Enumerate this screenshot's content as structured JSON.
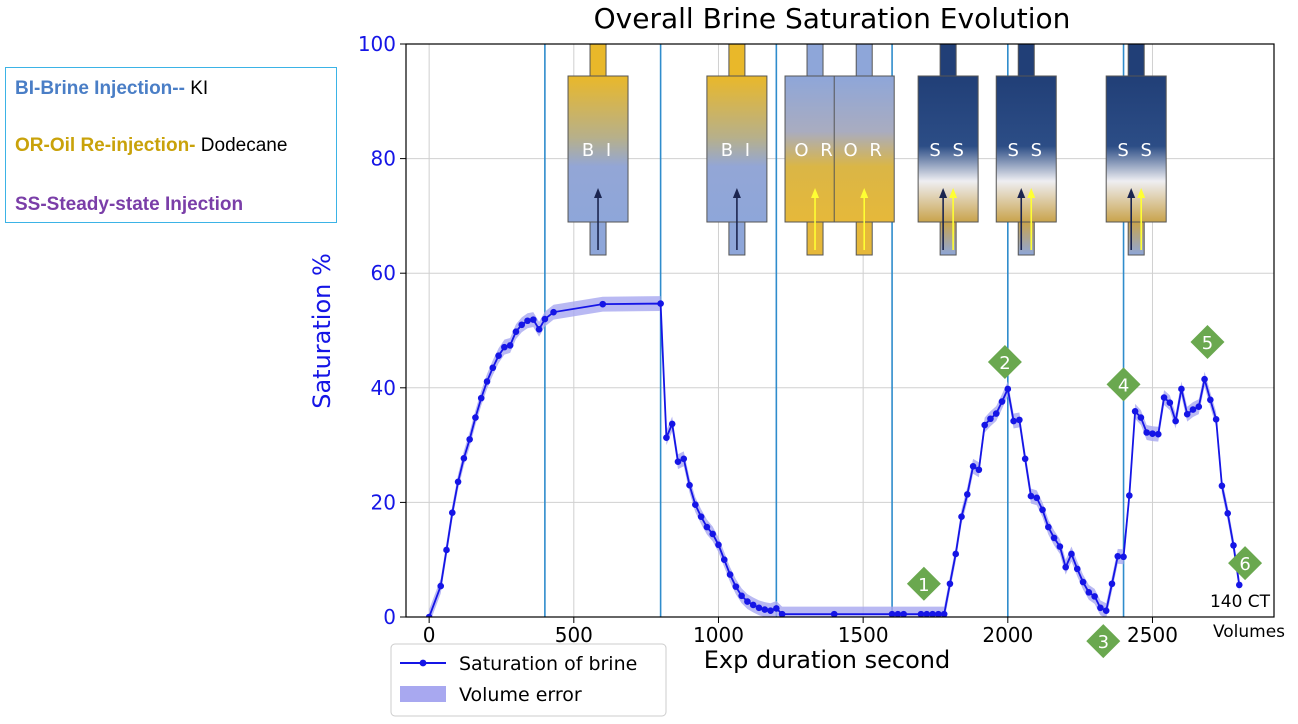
{
  "legend_box": {
    "lines": [
      {
        "key": "BI-Brine Injection--",
        "value": " KI",
        "key_color": "#4a7ec6"
      },
      {
        "key": "OR-Oil Re-injection-",
        "value": " Dodecane",
        "key_color": "#c9a20a"
      },
      {
        "key": "SS-Steady-state Injection",
        "value": "",
        "key_color": "#7a3ea8"
      }
    ]
  },
  "colors": {
    "line": "#1515e6",
    "band": "#a8a8f0",
    "axis_text": "#1515e6",
    "phase_line": "#2f8ccc",
    "marker": "#6aa84f"
  },
  "chart_data": {
    "type": "line",
    "title": "Overall Brine Saturation Evolution",
    "xlabel": "Exp duration second",
    "ylabel": "Saturation %",
    "xlim": [
      -80,
      2920
    ],
    "ylim": [
      0,
      100
    ],
    "xticks": [
      "0",
      "500",
      "1000",
      "1500",
      "2000",
      "2500"
    ],
    "yticks": [
      "0",
      "20",
      "40",
      "60",
      "80",
      "100"
    ],
    "grid": true,
    "phase_boundaries": [
      400,
      800,
      1200,
      1600,
      2000,
      2400
    ],
    "legend": {
      "position": "bottom-left",
      "entries": [
        "Saturation of brine",
        "Volume error"
      ]
    },
    "series": [
      {
        "name": "Saturation of brine",
        "error": 1.3,
        "points": [
          [
            0,
            0
          ],
          [
            40,
            5.4
          ],
          [
            60,
            11.7
          ],
          [
            80,
            18.2
          ],
          [
            100,
            23.6
          ],
          [
            120,
            27.7
          ],
          [
            140,
            31
          ],
          [
            160,
            34.8
          ],
          [
            180,
            38.2
          ],
          [
            200,
            41.1
          ],
          [
            220,
            43.5
          ],
          [
            240,
            45.6
          ],
          [
            260,
            47.1
          ],
          [
            280,
            47.4
          ],
          [
            300,
            49.8
          ],
          [
            320,
            51
          ],
          [
            340,
            51.7
          ],
          [
            360,
            51.9
          ],
          [
            380,
            50.2
          ],
          [
            400,
            52
          ],
          [
            430,
            53.2
          ],
          [
            600,
            54.6
          ],
          [
            800,
            54.7
          ],
          [
            820,
            31.3
          ],
          [
            840,
            33.7
          ],
          [
            860,
            27.1
          ],
          [
            880,
            27.6
          ],
          [
            900,
            23
          ],
          [
            920,
            19.6
          ],
          [
            940,
            17.5
          ],
          [
            960,
            15.7
          ],
          [
            980,
            14.5
          ],
          [
            1000,
            12.6
          ],
          [
            1020,
            10
          ],
          [
            1040,
            7.4
          ],
          [
            1060,
            5.3
          ],
          [
            1080,
            3.7
          ],
          [
            1100,
            2.7
          ],
          [
            1120,
            2.1
          ],
          [
            1140,
            1.6
          ],
          [
            1160,
            1.3
          ],
          [
            1180,
            1.1
          ],
          [
            1200,
            1.5
          ],
          [
            1220,
            0.5
          ],
          [
            1400,
            0.5
          ],
          [
            1600,
            0.5
          ],
          [
            1620,
            0.5
          ],
          [
            1640,
            0.5
          ],
          [
            1700,
            0.5
          ],
          [
            1720,
            0.5
          ],
          [
            1740,
            0.5
          ],
          [
            1760,
            0.5
          ],
          [
            1780,
            0.5
          ],
          [
            1800,
            5.8
          ],
          [
            1820,
            11
          ],
          [
            1840,
            17.5
          ],
          [
            1860,
            21.4
          ],
          [
            1880,
            26.3
          ],
          [
            1900,
            25.7
          ],
          [
            1920,
            33.5
          ],
          [
            1940,
            34.6
          ],
          [
            1960,
            35.5
          ],
          [
            1980,
            37.6
          ],
          [
            2000,
            39.8
          ],
          [
            2020,
            34.2
          ],
          [
            2040,
            34.4
          ],
          [
            2060,
            27.6
          ],
          [
            2080,
            21.1
          ],
          [
            2100,
            20.8
          ],
          [
            2120,
            18.7
          ],
          [
            2140,
            15.7
          ],
          [
            2160,
            13.8
          ],
          [
            2180,
            12.3
          ],
          [
            2200,
            8.7
          ],
          [
            2220,
            11
          ],
          [
            2240,
            8.4
          ],
          [
            2260,
            6.1
          ],
          [
            2280,
            4.3
          ],
          [
            2300,
            3.6
          ],
          [
            2320,
            1.6
          ],
          [
            2340,
            1.1
          ],
          [
            2360,
            5.8
          ],
          [
            2380,
            10.6
          ],
          [
            2400,
            10.5
          ],
          [
            2420,
            21.2
          ],
          [
            2440,
            35.9
          ],
          [
            2460,
            34.8
          ],
          [
            2480,
            32.2
          ],
          [
            2500,
            32
          ],
          [
            2520,
            31.9
          ],
          [
            2540,
            38.3
          ],
          [
            2560,
            37.4
          ],
          [
            2580,
            34.2
          ],
          [
            2600,
            39.8
          ],
          [
            2620,
            35.4
          ],
          [
            2640,
            36.2
          ],
          [
            2660,
            36.7
          ],
          [
            2680,
            41.5
          ],
          [
            2700,
            37.9
          ],
          [
            2720,
            34.5
          ],
          [
            2740,
            22.9
          ],
          [
            2760,
            18.1
          ],
          [
            2780,
            12.5
          ],
          [
            2800,
            5.6
          ]
        ]
      }
    ],
    "cores": [
      {
        "x": 480,
        "label": "B I",
        "phase": "brine"
      },
      {
        "x": 960,
        "label": "B I",
        "phase": "brine"
      },
      {
        "x": 1230,
        "label": "O R",
        "phase": "oil"
      },
      {
        "x": 1400,
        "label": "O R",
        "phase": "oil"
      },
      {
        "x": 1690,
        "label": "S S",
        "phase": "ss"
      },
      {
        "x": 1960,
        "label": "S S",
        "phase": "ss"
      },
      {
        "x": 2340,
        "label": "S S",
        "phase": "ss"
      }
    ],
    "markers": [
      {
        "label": "1",
        "x": 1710,
        "y": 5.8
      },
      {
        "label": "2",
        "x": 1990,
        "y": 44.5
      },
      {
        "label": "3",
        "x": 2330,
        "y": -4.2
      },
      {
        "label": "4",
        "x": 2400,
        "y": 40.6
      },
      {
        "label": "5",
        "x": 2690,
        "y": 48
      },
      {
        "label": "6",
        "x": 2820,
        "y": 9.4
      }
    ],
    "annotation": {
      "line1": "140 CT",
      "line2": "Volumes"
    }
  }
}
